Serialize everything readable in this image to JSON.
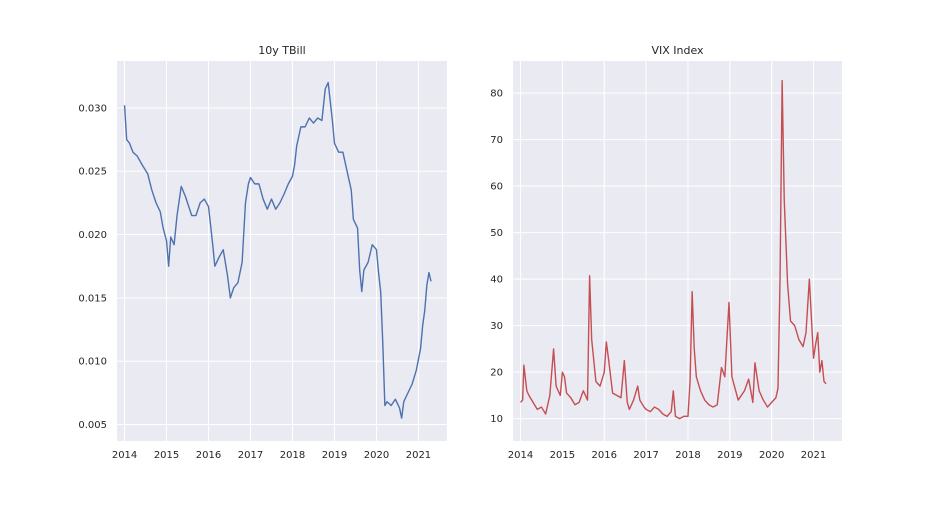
{
  "chart_data": [
    {
      "type": "line",
      "title": "10y TBill",
      "xlabel": "",
      "ylabel": "",
      "xlim": [
        2013.82,
        2021.68
      ],
      "ylim": [
        0.0037,
        0.0337
      ],
      "x_ticks": [
        2014,
        2015,
        2016,
        2017,
        2018,
        2019,
        2020,
        2021
      ],
      "x_tick_labels": [
        "2014",
        "2015",
        "2016",
        "2017",
        "2018",
        "2019",
        "2020",
        "2021"
      ],
      "y_ticks": [
        0.005,
        0.01,
        0.015,
        0.02,
        0.025,
        0.03
      ],
      "y_tick_labels": [
        "0.005",
        "0.010",
        "0.015",
        "0.020",
        "0.025",
        "0.030"
      ],
      "grid": true,
      "color": "#4c72b0",
      "series": [
        {
          "x": [
            2014.0,
            2014.05,
            2014.12,
            2014.2,
            2014.3,
            2014.42,
            2014.55,
            2014.65,
            2014.75,
            2014.85,
            2014.92,
            2015.0,
            2015.05,
            2015.1,
            2015.18,
            2015.25,
            2015.35,
            2015.45,
            2015.5,
            2015.6,
            2015.7,
            2015.8,
            2015.9,
            2016.0,
            2016.1,
            2016.15,
            2016.25,
            2016.35,
            2016.45,
            2016.52,
            2016.6,
            2016.7,
            2016.8,
            2016.88,
            2016.95,
            2017.0,
            2017.1,
            2017.2,
            2017.3,
            2017.4,
            2017.5,
            2017.6,
            2017.7,
            2017.8,
            2017.9,
            2018.0,
            2018.05,
            2018.1,
            2018.2,
            2018.3,
            2018.4,
            2018.5,
            2018.6,
            2018.7,
            2018.78,
            2018.85,
            2018.95,
            2019.0,
            2019.1,
            2019.2,
            2019.3,
            2019.4,
            2019.45,
            2019.55,
            2019.6,
            2019.65,
            2019.7,
            2019.8,
            2019.9,
            2020.0,
            2020.05,
            2020.1,
            2020.15,
            2020.2,
            2020.25,
            2020.35,
            2020.45,
            2020.55,
            2020.6,
            2020.65,
            2020.75,
            2020.85,
            2020.95,
            2021.05,
            2021.1,
            2021.15,
            2021.2,
            2021.25,
            2021.3
          ],
          "y": [
            0.0302,
            0.0275,
            0.0272,
            0.0265,
            0.0262,
            0.0255,
            0.0248,
            0.0235,
            0.0225,
            0.0218,
            0.0205,
            0.0195,
            0.0175,
            0.0198,
            0.0192,
            0.0215,
            0.0238,
            0.023,
            0.0225,
            0.0215,
            0.0215,
            0.0225,
            0.0228,
            0.0222,
            0.0192,
            0.0175,
            0.0182,
            0.0188,
            0.0168,
            0.015,
            0.0158,
            0.0162,
            0.0178,
            0.0225,
            0.024,
            0.0245,
            0.024,
            0.024,
            0.0228,
            0.022,
            0.0228,
            0.022,
            0.0225,
            0.0232,
            0.024,
            0.0246,
            0.0255,
            0.027,
            0.0285,
            0.0285,
            0.0292,
            0.0288,
            0.0292,
            0.029,
            0.0315,
            0.032,
            0.029,
            0.0272,
            0.0265,
            0.0265,
            0.025,
            0.0235,
            0.0212,
            0.0205,
            0.0172,
            0.0155,
            0.0172,
            0.0178,
            0.0192,
            0.0188,
            0.017,
            0.0155,
            0.0115,
            0.0065,
            0.0068,
            0.0065,
            0.007,
            0.0063,
            0.0055,
            0.0068,
            0.0075,
            0.0082,
            0.0093,
            0.011,
            0.0128,
            0.014,
            0.016,
            0.017,
            0.0163
          ]
        }
      ]
    },
    {
      "type": "line",
      "title": "VIX Index",
      "xlabel": "",
      "ylabel": "",
      "xlim": [
        2013.82,
        2021.68
      ],
      "ylim": [
        5.2,
        86.9
      ],
      "x_ticks": [
        2014,
        2015,
        2016,
        2017,
        2018,
        2019,
        2020,
        2021
      ],
      "x_tick_labels": [
        "2014",
        "2015",
        "2016",
        "2017",
        "2018",
        "2019",
        "2020",
        "2021"
      ],
      "y_ticks": [
        10,
        20,
        30,
        40,
        50,
        60,
        70,
        80
      ],
      "y_tick_labels": [
        "10",
        "20",
        "30",
        "40",
        "50",
        "60",
        "70",
        "80"
      ],
      "grid": true,
      "color": "#c44e52",
      "series": [
        {
          "x": [
            2014.0,
            2014.05,
            2014.08,
            2014.15,
            2014.2,
            2014.3,
            2014.4,
            2014.5,
            2014.6,
            2014.7,
            2014.79,
            2014.85,
            2014.95,
            2015.0,
            2015.05,
            2015.1,
            2015.2,
            2015.3,
            2015.4,
            2015.5,
            2015.6,
            2015.65,
            2015.7,
            2015.8,
            2015.9,
            2016.0,
            2016.05,
            2016.1,
            2016.2,
            2016.3,
            2016.4,
            2016.48,
            2016.55,
            2016.6,
            2016.7,
            2016.8,
            2016.85,
            2016.95,
            2017.0,
            2017.1,
            2017.2,
            2017.3,
            2017.4,
            2017.5,
            2017.6,
            2017.65,
            2017.7,
            2017.8,
            2017.9,
            2018.0,
            2018.05,
            2018.1,
            2018.15,
            2018.2,
            2018.3,
            2018.4,
            2018.5,
            2018.6,
            2018.7,
            2018.8,
            2018.88,
            2018.98,
            2019.05,
            2019.2,
            2019.35,
            2019.45,
            2019.55,
            2019.6,
            2019.7,
            2019.8,
            2019.9,
            2020.0,
            2020.1,
            2020.15,
            2020.2,
            2020.25,
            2020.3,
            2020.38,
            2020.45,
            2020.55,
            2020.65,
            2020.75,
            2020.82,
            2020.9,
            2021.0,
            2021.05,
            2021.1,
            2021.15,
            2021.2,
            2021.25,
            2021.3
          ],
          "y": [
            13.5,
            14.0,
            21.5,
            16.0,
            15.0,
            13.5,
            12.0,
            12.5,
            11.0,
            15.0,
            25.0,
            17.0,
            15.0,
            20.0,
            19.0,
            15.5,
            14.5,
            13.0,
            13.5,
            16.0,
            14.0,
            40.7,
            27.0,
            18.0,
            17.0,
            20.0,
            26.5,
            23.0,
            15.5,
            15.0,
            14.5,
            22.5,
            13.5,
            12.0,
            14.0,
            17.0,
            14.0,
            12.5,
            12.0,
            11.5,
            12.5,
            12.0,
            11.0,
            10.5,
            11.5,
            16.0,
            10.5,
            10.0,
            10.5,
            10.5,
            18.0,
            37.3,
            25.0,
            19.0,
            16.0,
            14.0,
            13.0,
            12.5,
            13.0,
            21.0,
            19.0,
            35.0,
            19.0,
            14.0,
            16.0,
            18.5,
            13.5,
            22.0,
            16.0,
            14.0,
            12.5,
            13.5,
            14.5,
            16.5,
            40.0,
            82.7,
            57.0,
            39.0,
            31.0,
            30.0,
            27.0,
            25.5,
            28.5,
            40.0,
            23.0,
            26.0,
            28.5,
            20.0,
            22.5,
            18.0,
            17.5
          ]
        }
      ]
    }
  ]
}
